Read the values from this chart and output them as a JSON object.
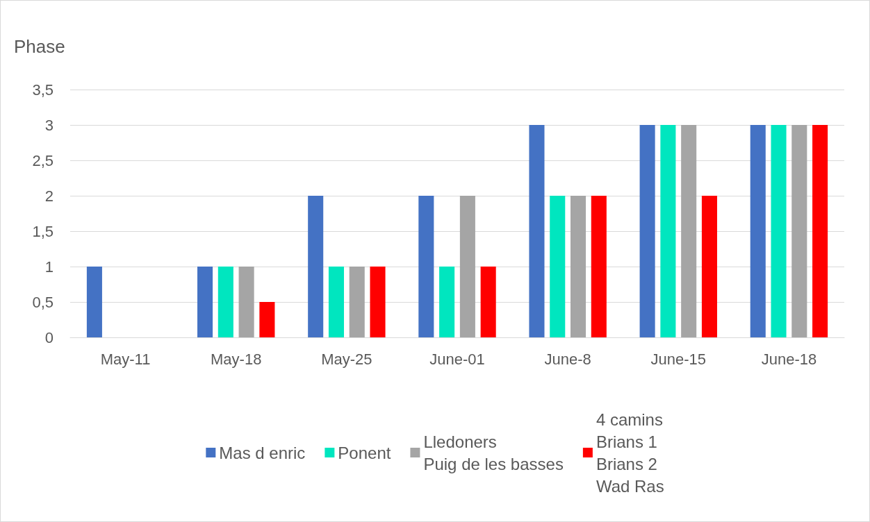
{
  "chart_data": {
    "type": "bar",
    "ylabel": "Phase",
    "categories": [
      "May-11",
      "May-18",
      "May-25",
      "June-01",
      "June-8",
      "June-15",
      "June-18"
    ],
    "series": [
      {
        "name": "Mas d enric",
        "color": "#4472c4",
        "values": [
          1,
          1,
          2,
          2,
          3,
          3,
          3
        ]
      },
      {
        "name": "Ponent",
        "color": "#00e6bf",
        "values": [
          0,
          1,
          1,
          1,
          2,
          3,
          3
        ]
      },
      {
        "name": "Lledoners\nPuig de les basses",
        "color": "#a5a5a5",
        "values": [
          0,
          1,
          1,
          2,
          2,
          3,
          3
        ]
      },
      {
        "name": "4 camins\nBrians 1\nBrians 2\nWad Ras",
        "color": "#ff0000",
        "values": [
          0,
          0.5,
          1,
          1,
          2,
          2,
          3
        ]
      }
    ],
    "ylim": [
      0,
      3.5
    ],
    "yticks": [
      0,
      {
        "value": 0.5,
        "label": "0,5"
      },
      1,
      {
        "value": 1.5,
        "label": "1,5"
      },
      2,
      {
        "value": 2.5,
        "label": "2,5"
      },
      3,
      {
        "value": 3.5,
        "label": "3,5"
      }
    ],
    "grid": "y",
    "legend": "bottom"
  }
}
